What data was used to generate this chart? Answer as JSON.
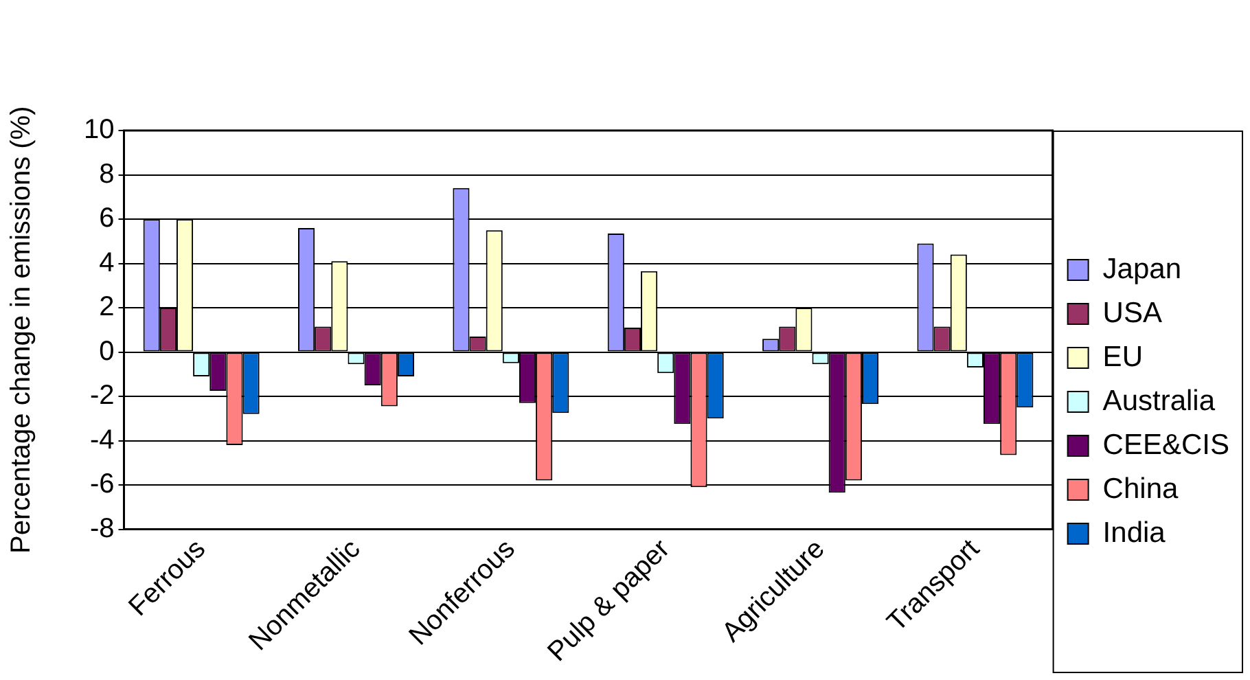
{
  "chart_data": {
    "type": "bar",
    "ylabel": "Percentage change in emissions (%)",
    "categories": [
      "Ferrous",
      "Nonmetallic",
      "Nonferrous",
      "Pulp & paper",
      "Agriculture",
      "Transport"
    ],
    "series": [
      {
        "name": "Japan",
        "color": "#9999ff",
        "values": [
          6.0,
          5.6,
          7.4,
          5.35,
          0.6,
          4.9
        ]
      },
      {
        "name": "USA",
        "color": "#993366",
        "values": [
          2.0,
          1.15,
          0.7,
          1.1,
          1.15,
          1.15
        ]
      },
      {
        "name": "EU",
        "color": "#ffffcc",
        "values": [
          6.0,
          4.1,
          5.5,
          3.65,
          2.0,
          4.4
        ]
      },
      {
        "name": "Australia",
        "color": "#ccffff",
        "values": [
          -1.1,
          -0.55,
          -0.5,
          -0.95,
          -0.55,
          -0.7
        ]
      },
      {
        "name": "CEE&CIS",
        "color": "#660066",
        "values": [
          -1.75,
          -1.5,
          -2.3,
          -3.25,
          -6.35,
          -3.25
        ]
      },
      {
        "name": "China",
        "color": "#ff8080",
        "values": [
          -4.2,
          -2.45,
          -5.8,
          -6.1,
          -5.8,
          -4.65
        ]
      },
      {
        "name": "India",
        "color": "#0066cc",
        "values": [
          -2.8,
          -1.1,
          -2.75,
          -3.0,
          -2.35,
          -2.5
        ]
      }
    ],
    "ylim": [
      -8,
      10
    ],
    "yticks": [
      -8,
      -6,
      -4,
      -2,
      0,
      2,
      4,
      6,
      8,
      10
    ],
    "grid": "y",
    "legend": "right"
  }
}
